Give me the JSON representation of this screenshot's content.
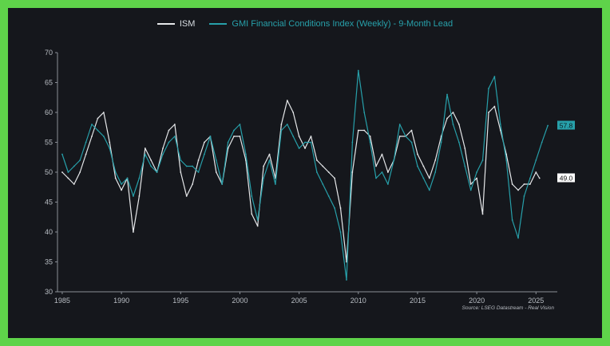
{
  "colors": {
    "background": "#15171c",
    "frame": "#5fd34a",
    "ism": "#e6e8ea",
    "gmi": "#27a0aa",
    "axis": "#8a8f96",
    "tick_text": "#b9bec4"
  },
  "chart_data": {
    "type": "line",
    "title": "",
    "xlabel": "",
    "ylabel": "",
    "xlim": [
      1984.6,
      2026.8
    ],
    "ylim": [
      30,
      70
    ],
    "grid": false,
    "legend_position": "top-center",
    "x_ticks": [
      "1985",
      "1990",
      "1995",
      "2000",
      "2005",
      "2010",
      "2015",
      "2020",
      "2025"
    ],
    "y_ticks": [
      "30",
      "35",
      "40",
      "45",
      "50",
      "55",
      "60",
      "65",
      "70"
    ],
    "source": "Source: LSEG Datastream - Real Vision",
    "series": [
      {
        "name": "ISM",
        "color": "#e6e8ea",
        "end_label": "49.0",
        "x": [
          1985,
          1985.5,
          1986,
          1986.5,
          1987,
          1987.5,
          1988,
          1988.5,
          1989,
          1989.5,
          1990,
          1990.5,
          1991,
          1991.5,
          1992,
          1992.5,
          1993,
          1993.5,
          1994,
          1994.5,
          1995,
          1995.5,
          1996,
          1996.5,
          1997,
          1997.5,
          1998,
          1998.5,
          1999,
          1999.5,
          2000,
          2000.5,
          2001,
          2001.5,
          2002,
          2002.5,
          2003,
          2003.5,
          2004,
          2004.5,
          2005,
          2005.5,
          2006,
          2006.5,
          2007,
          2007.5,
          2008,
          2008.5,
          2009,
          2009.5,
          2010,
          2010.5,
          2011,
          2011.5,
          2012,
          2012.5,
          2013,
          2013.5,
          2014,
          2014.5,
          2015,
          2015.5,
          2016,
          2016.5,
          2017,
          2017.5,
          2018,
          2018.5,
          2019,
          2019.5,
          2020,
          2020.5,
          2021,
          2021.5,
          2022,
          2022.5,
          2023,
          2023.5,
          2024,
          2024.5,
          2025,
          2025.3
        ],
        "values": [
          50,
          49,
          48,
          50,
          53,
          56,
          59,
          60,
          55,
          49,
          47,
          49,
          40,
          46,
          54,
          52,
          50,
          54,
          57,
          58,
          50,
          46,
          48,
          52,
          55,
          56,
          50,
          48,
          54,
          56,
          56,
          52,
          43,
          41,
          51,
          53,
          49,
          58,
          62,
          60,
          56,
          54,
          56,
          52,
          51,
          50,
          49,
          44,
          35,
          50,
          57,
          57,
          56,
          51,
          53,
          50,
          52,
          56,
          56,
          57,
          53,
          51,
          49,
          52,
          56,
          59,
          60,
          58,
          54,
          48,
          49,
          43,
          60,
          61,
          57,
          53,
          48,
          47,
          48,
          48,
          50,
          49
        ]
      },
      {
        "name": "GMI Financial Conditions Index (Weekly) - 9-Month Lead",
        "color": "#27a0aa",
        "end_label": "57.8",
        "x": [
          1985,
          1985.5,
          1986,
          1986.5,
          1987,
          1987.5,
          1988,
          1988.5,
          1989,
          1989.5,
          1990,
          1990.5,
          1991,
          1991.5,
          1992,
          1992.5,
          1993,
          1993.5,
          1994,
          1994.5,
          1995,
          1995.5,
          1996,
          1996.5,
          1997,
          1997.5,
          1998,
          1998.5,
          1999,
          1999.5,
          2000,
          2000.5,
          2001,
          2001.5,
          2002,
          2002.5,
          2003,
          2003.5,
          2004,
          2004.5,
          2005,
          2005.5,
          2006,
          2006.5,
          2007,
          2007.5,
          2008,
          2008.5,
          2009,
          2009.5,
          2010,
          2010.5,
          2011,
          2011.5,
          2012,
          2012.5,
          2013,
          2013.5,
          2014,
          2014.5,
          2015,
          2015.5,
          2016,
          2016.5,
          2017,
          2017.5,
          2018,
          2018.5,
          2019,
          2019.5,
          2020,
          2020.5,
          2021,
          2021.5,
          2022,
          2022.5,
          2023,
          2023.5,
          2024,
          2024.5,
          2025,
          2025.5,
          2026
        ],
        "values": [
          53,
          50,
          51,
          52,
          55,
          58,
          57,
          56,
          54,
          50,
          48,
          49,
          46,
          49,
          53,
          51,
          50,
          53,
          55,
          56,
          52,
          51,
          51,
          50,
          53,
          56,
          52,
          48,
          55,
          57,
          58,
          53,
          46,
          42,
          49,
          52,
          48,
          57,
          58,
          56,
          54,
          55,
          55,
          50,
          48,
          46,
          44,
          40,
          32,
          55,
          67,
          60,
          55,
          49,
          50,
          48,
          52,
          58,
          56,
          55,
          51,
          49,
          47,
          50,
          55,
          63,
          58,
          55,
          51,
          47,
          50,
          52,
          64,
          66,
          58,
          52,
          42,
          39,
          46,
          49,
          52,
          55,
          57.8
        ]
      }
    ]
  }
}
